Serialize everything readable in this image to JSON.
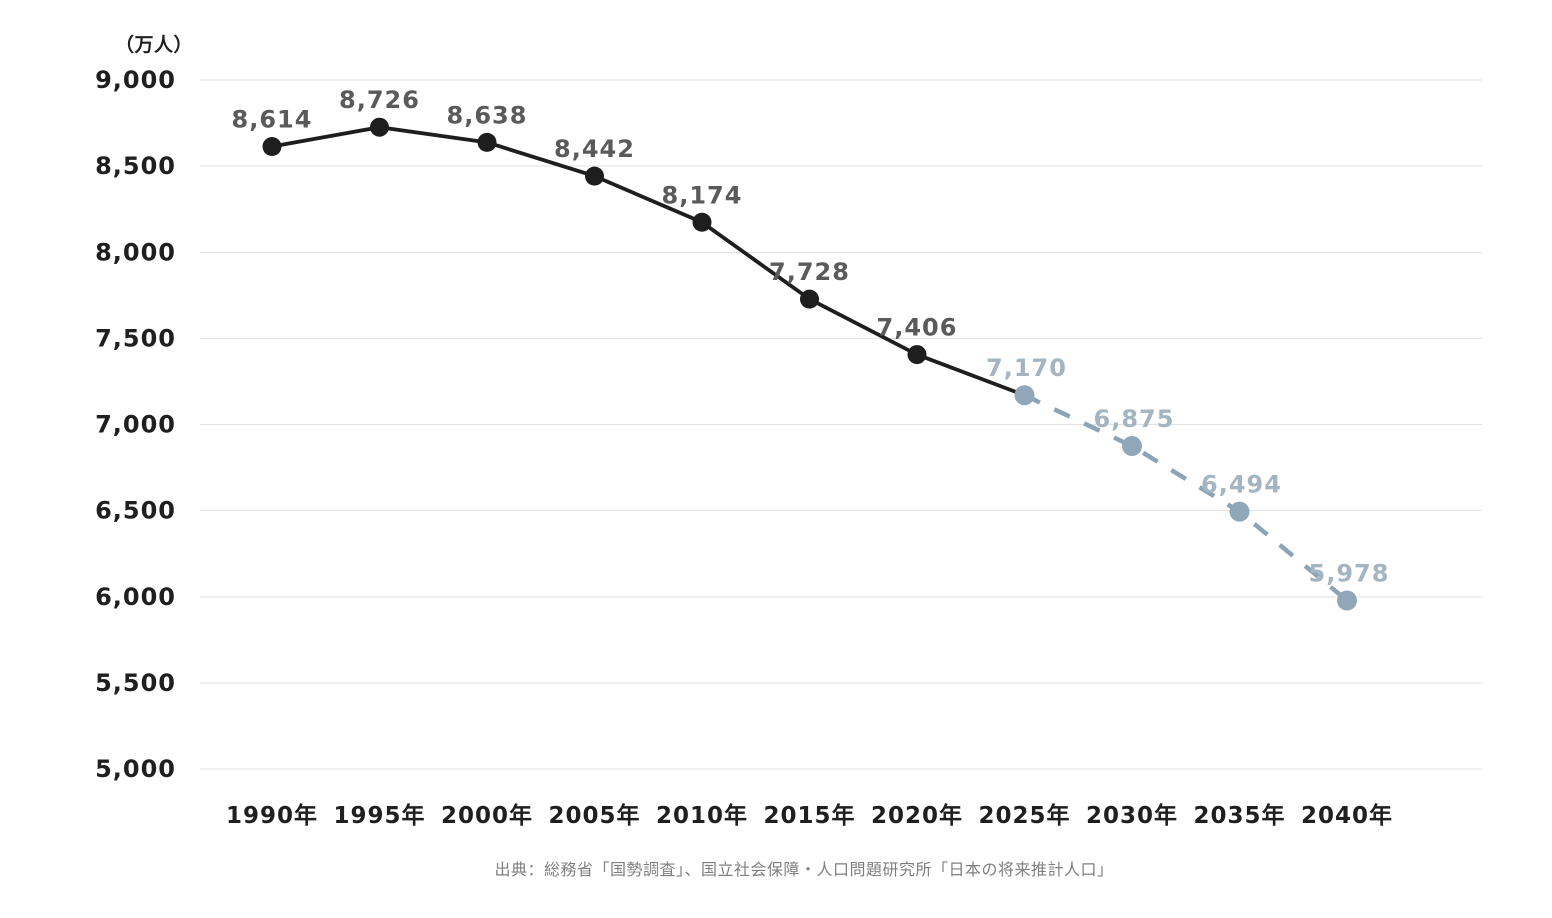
{
  "chart_data": {
    "type": "line",
    "title": "",
    "unit_label": "（万人）",
    "x": [
      "1990年",
      "1995年",
      "2000年",
      "2005年",
      "2010年",
      "2015年",
      "2020年",
      "2025年",
      "2030年",
      "2035年",
      "2040年"
    ],
    "series": [
      {
        "name": "actual",
        "line_style": "solid",
        "x": [
          "1990年",
          "1995年",
          "2000年",
          "2005年",
          "2010年",
          "2015年",
          "2020年"
        ],
        "values": [
          8614,
          8726,
          8638,
          8442,
          8174,
          7728,
          7406
        ],
        "point_labels": [
          "8,614",
          "8,726",
          "8,638",
          "8,442",
          "8,174",
          "7,728",
          "7,406"
        ]
      },
      {
        "name": "projection",
        "line_style": "dashed",
        "x": [
          "2025年",
          "2030年",
          "2035年",
          "2040年"
        ],
        "values": [
          7170,
          6875,
          6494,
          5978
        ],
        "point_labels": [
          "7,170",
          "6,875",
          "6,494",
          "5,978"
        ]
      }
    ],
    "connect_series": true,
    "ylim": [
      5000,
      9000
    ],
    "ytick_step": 500,
    "yticks": [
      "9,000",
      "8,500",
      "8,000",
      "7,500",
      "7,000",
      "6,500",
      "6,000",
      "5,500",
      "5,000"
    ],
    "grid": "horizontal",
    "legend": "none",
    "colors": {
      "actual_line": "#1e1e1e",
      "actual_point": "#1e1e1e",
      "actual_label": "#5a5a5a",
      "projection_line": "#8ca4b6",
      "projection_point": "#8fa7b8",
      "projection_label": "#a4b5c2",
      "grid": "#e2e2e2",
      "axis_text": "#1f1f1f"
    }
  },
  "footer": {
    "source": "出典：総務省「国勢調査」、国立社会保障・人口問題研究所「日本の将来推計人口」"
  }
}
